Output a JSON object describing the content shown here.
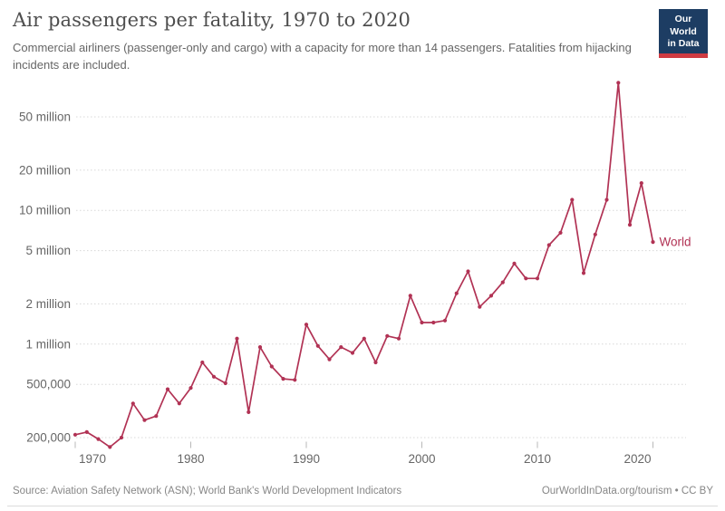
{
  "header": {
    "title": "Air passengers per fatality, 1970 to 2020",
    "subtitle": "Commercial airliners (passenger-only and cargo) with a capacity for more than 14 passengers. Fatalities from hijacking incidents are included.",
    "logo": {
      "line1": "Our World",
      "line2": "in Data"
    }
  },
  "chart_data": {
    "type": "line",
    "title": "Air passengers per fatality, 1970 to 2020",
    "xlabel": "",
    "ylabel": "",
    "y_scale": "log",
    "grid": "horizontal-dotted",
    "legend_position": "end-of-line-label",
    "xlim": [
      1970,
      2020
    ],
    "ylim": [
      150000,
      100000000
    ],
    "x_ticks": [
      1970,
      1980,
      1990,
      2000,
      2010,
      2020
    ],
    "y_ticks": [
      {
        "value": 200000,
        "label": "200,000"
      },
      {
        "value": 500000,
        "label": "500,000"
      },
      {
        "value": 1000000,
        "label": "1 million"
      },
      {
        "value": 2000000,
        "label": "2 million"
      },
      {
        "value": 5000000,
        "label": "5 million"
      },
      {
        "value": 10000000,
        "label": "10 million"
      },
      {
        "value": 20000000,
        "label": "20 million"
      },
      {
        "value": 50000000,
        "label": "50 million"
      }
    ],
    "x": [
      1970,
      1971,
      1972,
      1973,
      1974,
      1975,
      1976,
      1977,
      1978,
      1979,
      1980,
      1981,
      1982,
      1983,
      1984,
      1985,
      1986,
      1987,
      1988,
      1989,
      1990,
      1991,
      1992,
      1993,
      1994,
      1995,
      1996,
      1997,
      1998,
      1999,
      2000,
      2001,
      2002,
      2003,
      2004,
      2005,
      2006,
      2007,
      2008,
      2009,
      2010,
      2011,
      2012,
      2013,
      2014,
      2015,
      2016,
      2017,
      2018,
      2019,
      2020
    ],
    "series": [
      {
        "name": "World",
        "color": "#b13254",
        "values": [
          210000,
          220000,
          195000,
          170000,
          200000,
          360000,
          270000,
          290000,
          460000,
          360000,
          470000,
          730000,
          570000,
          510000,
          1100000,
          310000,
          950000,
          680000,
          550000,
          540000,
          1400000,
          970000,
          770000,
          950000,
          860000,
          1100000,
          730000,
          1150000,
          1100000,
          2300000,
          1450000,
          1450000,
          1500000,
          2400000,
          3500000,
          1900000,
          2300000,
          2900000,
          4000000,
          3100000,
          3100000,
          5500000,
          6800000,
          12000000,
          3400000,
          6600000,
          12000000,
          90000000,
          7800000,
          16000000,
          5800000
        ]
      }
    ]
  },
  "footer": {
    "source": "Source: Aviation Safety Network (ASN); World Bank's World Development Indicators",
    "attribution": "OurWorldInData.org/tourism • CC BY"
  },
  "colors": {
    "line": "#b13254",
    "grid": "#d8d8d8",
    "axis_text": "#666666",
    "tick_mark": "#b8b8b8",
    "title_text": "#4e4e4e",
    "subtitle_text": "#666666",
    "footer_text": "#878787",
    "logo_bg": "#1d3d63",
    "logo_stripe": "#cf3b42"
  }
}
